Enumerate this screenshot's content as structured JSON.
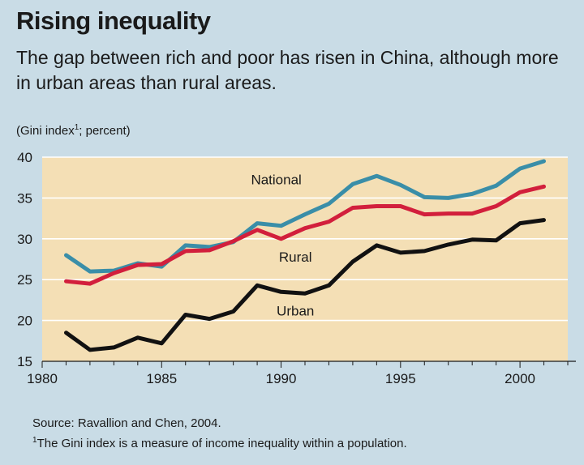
{
  "page": {
    "title": "Rising inequality",
    "subtitle": "The gap between rich and poor has risen in China, although more in urban areas than rural areas.",
    "source": "Source: Ravallion and Chen, 2004.",
    "footnote_marker": "1",
    "footnote_text": "The Gini index is a measure of income inequality within a population."
  },
  "chart_data": {
    "type": "line",
    "ylabel_prefix": "(Gini index",
    "ylabel_marker": "1",
    "ylabel_suffix": "; percent)",
    "xlim": [
      1980,
      2002
    ],
    "ylim": [
      15,
      40
    ],
    "x_ticks": [
      1980,
      1985,
      1990,
      1995,
      2000
    ],
    "y_ticks": [
      15,
      20,
      25,
      30,
      35,
      40
    ],
    "x": [
      1981,
      1982,
      1983,
      1984,
      1985,
      1986,
      1987,
      1988,
      1989,
      1990,
      1991,
      1992,
      1993,
      1994,
      1995,
      1996,
      1997,
      1998,
      1999,
      2000,
      2001
    ],
    "series": [
      {
        "name": "National",
        "color": "#3a8ea8",
        "values": [
          28.0,
          26.0,
          26.1,
          27.0,
          26.6,
          29.2,
          29.0,
          29.6,
          31.9,
          31.6,
          33.0,
          34.3,
          36.7,
          37.7,
          36.6,
          35.1,
          35.0,
          35.5,
          36.5,
          38.6,
          39.5
        ]
      },
      {
        "name": "Rural",
        "color": "#d21f3c",
        "values": [
          24.8,
          24.5,
          25.8,
          26.8,
          26.9,
          28.5,
          28.6,
          29.7,
          31.1,
          30.0,
          31.3,
          32.1,
          33.8,
          34.0,
          34.0,
          33.0,
          33.1,
          33.1,
          34.0,
          35.7,
          36.4
        ]
      },
      {
        "name": "Urban",
        "color": "#111111",
        "values": [
          18.5,
          16.4,
          16.7,
          17.9,
          17.2,
          20.7,
          20.2,
          21.1,
          24.3,
          23.5,
          23.3,
          24.3,
          27.2,
          29.2,
          28.3,
          28.5,
          29.3,
          29.9,
          29.8,
          31.9,
          32.3
        ]
      }
    ],
    "series_labels": [
      {
        "name": "National",
        "x": 1989.8,
        "y": 36.7
      },
      {
        "name": "Rural",
        "x": 1990.6,
        "y": 27.2
      },
      {
        "name": "Urban",
        "x": 1990.6,
        "y": 20.6
      }
    ],
    "colors": {
      "plot_background": "#f4dfb5",
      "gridline": "#ffffff",
      "page_background": "#c9dce6"
    }
  }
}
